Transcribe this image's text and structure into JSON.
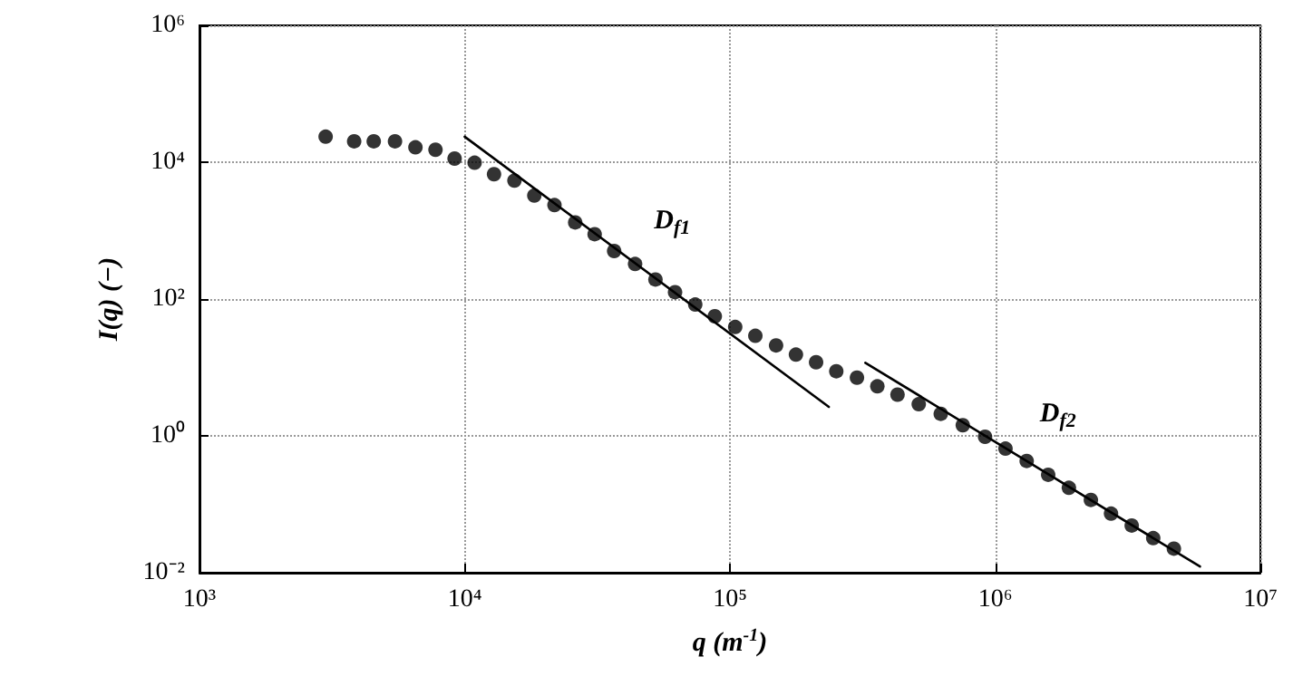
{
  "chart_data": {
    "type": "scatter",
    "xlabel": "q (m$^{-1}$)",
    "ylabel": "I(q) (−)",
    "x": [
      2990,
      3830,
      4540,
      5460,
      6520,
      7760,
      9160,
      10900,
      12900,
      15400,
      18300,
      21800,
      26100,
      30900,
      36600,
      43900,
      52400,
      62100,
      74000,
      87700,
      104700,
      124700,
      149300,
      177400,
      211300,
      251800,
      301300,
      359700,
      428500,
      515200,
      623700,
      755100,
      916200,
      1094000,
      1315000,
      1585000,
      1897000,
      2296000,
      2735000,
      3273000,
      3945000,
      4721000
    ],
    "series": [
      {
        "color": "#000000",
        "marker": "circle",
        "values": [
          23600,
          20200,
          20200,
          20200,
          16500,
          15200,
          11300,
          9820,
          6680,
          5380,
          3250,
          2360,
          1320,
          887,
          504,
          325,
          193,
          126,
          83,
          56,
          39,
          29,
          21,
          15.4,
          11.9,
          8.8,
          7.1,
          5.3,
          4.0,
          2.9,
          2.1,
          1.43,
          0.97,
          0.65,
          0.43,
          0.27,
          0.174,
          0.116,
          0.073,
          0.049,
          0.032,
          0.0225
        ]
      },
      {
        "type": "line",
        "color": "#000000",
        "marker": "none",
        "line_style": "solid",
        "x": [
          10000,
          236000
        ],
        "values": [
          23600,
          2.65
        ]
      },
      {
        "type": "line",
        "color": "#000000",
        "marker": "none",
        "line_style": "solid",
        "x": [
          324000,
          5920000
        ],
        "values": [
          11.7,
          0.0123
        ]
      }
    ],
    "annotations": [
      "D$_{f1}$",
      "D$_{f2}$"
    ],
    "log": "xy",
    "grid": true,
    "xlim": [
      1000,
      10000000
    ],
    "xticks": [
      {
        "value": 1000,
        "label": "10³"
      },
      {
        "value": 10000,
        "label": "10⁴"
      },
      {
        "value": 100000,
        "label": "10⁵"
      },
      {
        "value": 1000000,
        "label": "10⁶"
      },
      {
        "value": 10000000,
        "label": "10⁷"
      }
    ],
    "ylim": [
      0.01,
      1000000
    ],
    "yticks": [
      {
        "value": 0.01,
        "label": "10⁻²"
      },
      {
        "value": 1,
        "label": "10⁰"
      },
      {
        "value": 100,
        "label": "10²"
      },
      {
        "value": 10000,
        "label": "10⁴"
      },
      {
        "value": 1000000,
        "label": "10⁶"
      }
    ]
  }
}
